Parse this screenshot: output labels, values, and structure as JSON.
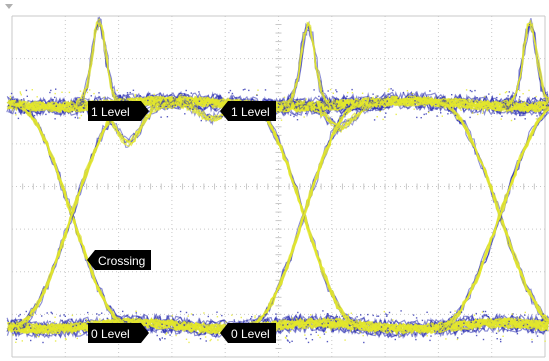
{
  "scope": {
    "background_color": "#ffffff",
    "grid_color": "#c8c8c8",
    "trace_colors": {
      "primary": "#e3e72b",
      "secondary": "#2c2fb0"
    },
    "marker_color": "#000000",
    "trigger_marker_icon": "small-triangle-down-icon"
  },
  "markers": {
    "one_level_left": "1 Level",
    "one_level_right": "1 Level",
    "crossing": "Crossing",
    "zero_level_left": "0 Level",
    "zero_level_right": "0 Level"
  }
}
